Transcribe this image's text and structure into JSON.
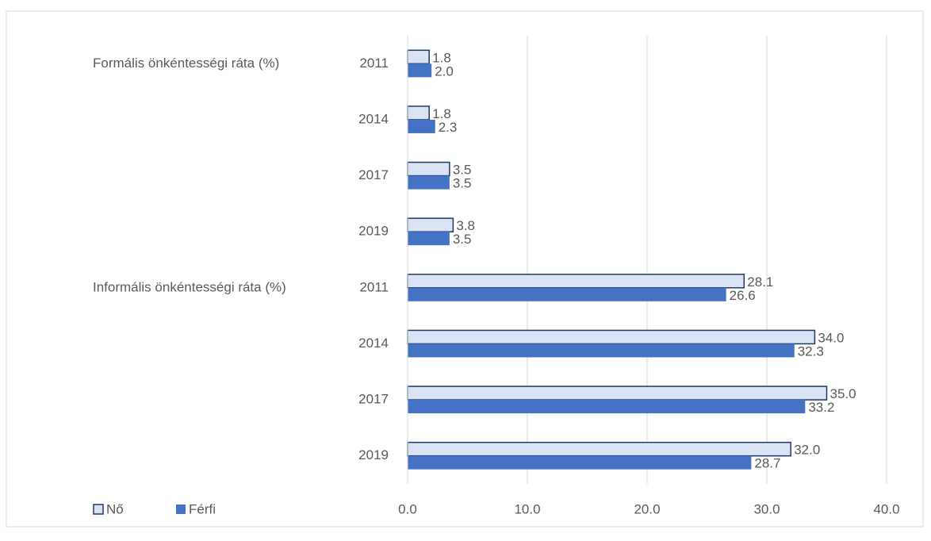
{
  "chart_data": {
    "type": "bar",
    "orientation": "horizontal",
    "groups": [
      {
        "name": "Formális önkéntességi ráta (%)",
        "categories": [
          "2011",
          "2014",
          "2017",
          "2019"
        ]
      },
      {
        "name": "Informális önkéntességi ráta (%)",
        "categories": [
          "2011",
          "2014",
          "2017",
          "2019"
        ]
      }
    ],
    "series": [
      {
        "name": "Nő",
        "color": "#dae3f3",
        "stroke": "#1f3864",
        "values": [
          1.8,
          1.8,
          3.5,
          3.8,
          28.1,
          34.0,
          35.0,
          32.0
        ],
        "value_labels": [
          "1.8",
          "1.8",
          "3.5",
          "3.8",
          "28.1",
          "34.0",
          "35.0",
          "32.0"
        ]
      },
      {
        "name": "Férfi",
        "color": "#4472c4",
        "values": [
          2.0,
          2.3,
          3.5,
          3.5,
          26.6,
          32.3,
          33.2,
          28.7
        ],
        "value_labels": [
          "2.0",
          "2.3",
          "3.5",
          "3.5",
          "26.6",
          "32.3",
          "33.2",
          "28.7"
        ]
      }
    ],
    "xlim": [
      0,
      40
    ],
    "xticks": [
      {
        "value": 0,
        "label": "0.0"
      },
      {
        "value": 10,
        "label": "10.0"
      },
      {
        "value": 20,
        "label": "20.0"
      },
      {
        "value": 30,
        "label": "30.0"
      },
      {
        "value": 40,
        "label": "40.0"
      }
    ],
    "grid": true,
    "legend": "bottom-left"
  }
}
